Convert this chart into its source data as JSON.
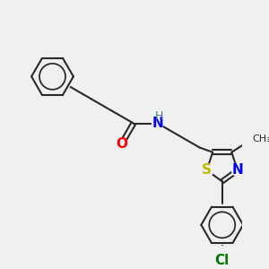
{
  "bg_color": "#f0f0f0",
  "bond_color": "#2a2a2a",
  "atom_colors": {
    "O": "#ff0000",
    "N": "#0000ee",
    "H_on_N": "#448888",
    "S": "#bbbb00",
    "Cl": "#007700",
    "C": "#2a2a2a"
  },
  "fig_size": [
    3.0,
    3.0
  ],
  "dpi": 100
}
